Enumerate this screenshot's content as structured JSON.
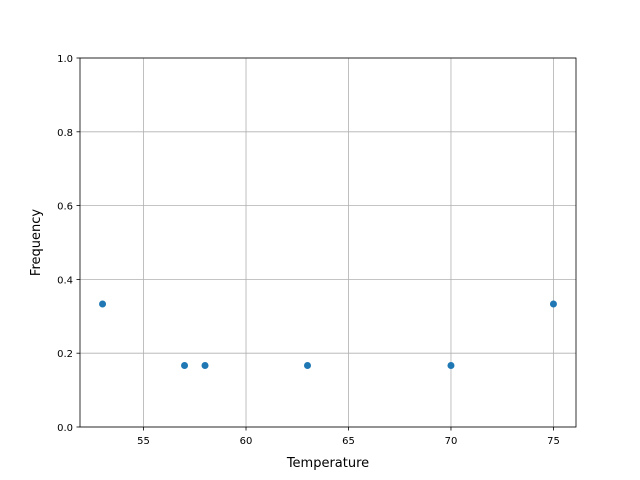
{
  "chart_data": {
    "type": "scatter",
    "title": "",
    "xlabel": "Temperature",
    "ylabel": "Frequency",
    "xlim": [
      51.9,
      76.1
    ],
    "ylim": [
      0,
      1
    ],
    "xticks": [
      55,
      60,
      65,
      70,
      75
    ],
    "yticks": [
      0.0,
      0.2,
      0.4,
      0.6,
      0.8,
      1.0
    ],
    "xtick_labels": [
      "55",
      "60",
      "65",
      "70",
      "75"
    ],
    "ytick_labels": [
      "0.0",
      "0.2",
      "0.4",
      "0.6",
      "0.8",
      "1.0"
    ],
    "grid": true,
    "color": "#1f77b4",
    "points": [
      {
        "x": 53,
        "y": 0.3333
      },
      {
        "x": 57,
        "y": 0.1667
      },
      {
        "x": 58,
        "y": 0.1667
      },
      {
        "x": 63,
        "y": 0.1667
      },
      {
        "x": 70,
        "y": 0.1667
      },
      {
        "x": 75,
        "y": 0.3333
      }
    ]
  }
}
